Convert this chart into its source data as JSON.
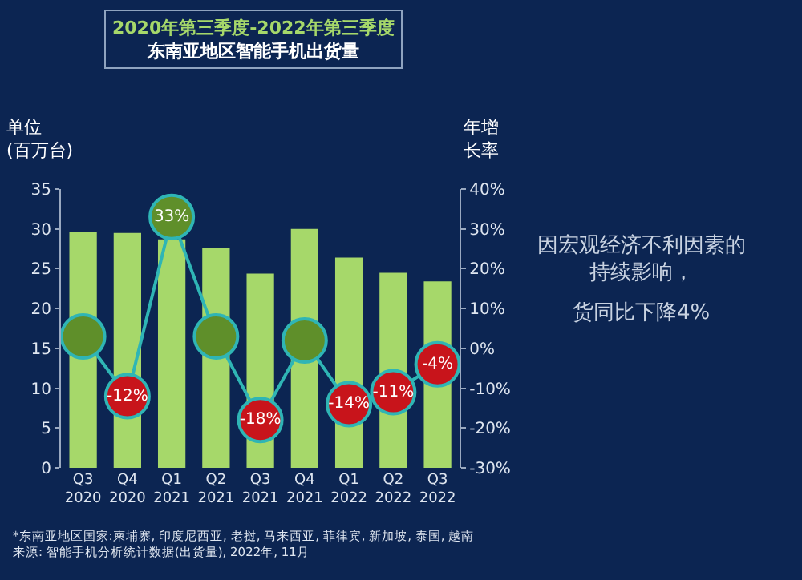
{
  "chart_data": {
    "type": "bar",
    "title": "2020年第三季度-2022年第三季度",
    "subtitle": "东南亚地区智能手机出货量",
    "ylabel": "单位\n(百万台)",
    "y2label": "年增长率",
    "categories": [
      "Q3\n2020",
      "Q4\n2020",
      "Q1\n2021",
      "Q2\n2021",
      "Q3\n2021",
      "Q4\n2021",
      "Q1\n2022",
      "Q2\n2022",
      "Q3\n2022"
    ],
    "series": [
      {
        "color": "#a6d86a",
        "values": [
          29.6,
          29.5,
          28.7,
          27.6,
          24.4,
          30.0,
          26.4,
          24.5,
          23.4
        ]
      },
      {
        "type": "line",
        "axis": "y2",
        "color": "#2fb5b5",
        "marker": "circle",
        "colors": [
          "#5f8f2a",
          "#c8141b",
          "#5f8f2a",
          "#5f8f2a",
          "#c8141b",
          "#5f8f2a",
          "#c8141b",
          "#c8141b",
          "#c8141b"
        ],
        "values": [
          3,
          -12,
          33,
          3,
          -18,
          2,
          -14,
          -11,
          -4
        ],
        "value_labels": [
          null,
          "-12%",
          "33%",
          null,
          "-18%",
          null,
          "-14%",
          "-11%",
          "-4%"
        ]
      }
    ],
    "ylim": [
      0,
      35
    ],
    "yticks": [
      0,
      5,
      10,
      15,
      20,
      25,
      30,
      35
    ],
    "y2lim": [
      -30,
      40
    ],
    "y2ticks": [
      {
        "value": -30,
        "label": "-30%"
      },
      {
        "value": -20,
        "label": "-20%"
      },
      {
        "value": -10,
        "label": "-10%"
      },
      {
        "value": 0,
        "label": "0%"
      },
      {
        "value": 10,
        "label": "10%"
      },
      {
        "value": 20,
        "label": "20%"
      },
      {
        "value": 30,
        "label": "30%"
      },
      {
        "value": 40,
        "label": "40%"
      }
    ],
    "grid": false,
    "annotations": [
      "因宏观经济不利因素的持续影响，",
      "货同比下降4%",
      "*东南亚地区国家:柬埔寨, 印度尼西亚, 老挝, 马来西亚, 菲律宾, 新加坡, 泰国, 越南",
      "来源: 智能手机分析统计数据(出货量), 2022年, 11月"
    ]
  }
}
